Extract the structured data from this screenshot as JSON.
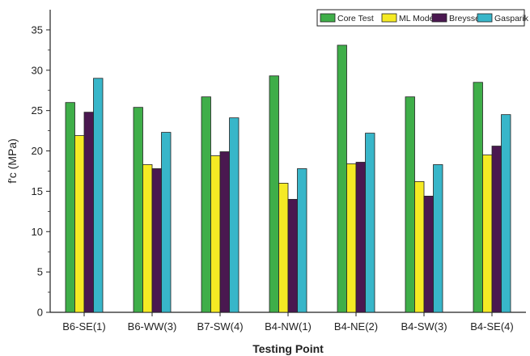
{
  "chart_data": {
    "type": "bar",
    "xlabel": "Testing Point",
    "ylabel": "f'c (MPa)",
    "ylim": [
      0,
      37.5
    ],
    "yticks": [
      0,
      5,
      10,
      15,
      20,
      25,
      30,
      35
    ],
    "categories": [
      "B6-SE(1)",
      "B6-WW(3)",
      "B7-SW(4)",
      "B4-NW(1)",
      "B4-NE(2)",
      "B4-SW(3)",
      "B4-SE(4)"
    ],
    "series": [
      {
        "name": "Core Test",
        "color": "#3fae49",
        "values": [
          26.0,
          25.4,
          26.7,
          29.3,
          33.1,
          26.7,
          28.5
        ]
      },
      {
        "name": "ML Model",
        "color": "#f5ea24",
        "values": [
          21.9,
          18.3,
          19.4,
          16.0,
          18.4,
          16.2,
          19.5
        ]
      },
      {
        "name": "Breysse",
        "color": "#4a1850",
        "values": [
          24.8,
          17.8,
          19.9,
          14.0,
          18.6,
          14.4,
          20.6
        ]
      },
      {
        "name": "Gasparik",
        "color": "#38b6c9",
        "values": [
          29.0,
          22.3,
          24.1,
          17.8,
          22.2,
          18.3,
          24.5
        ]
      }
    ],
    "legend_position": "top-right",
    "grid": false
  }
}
